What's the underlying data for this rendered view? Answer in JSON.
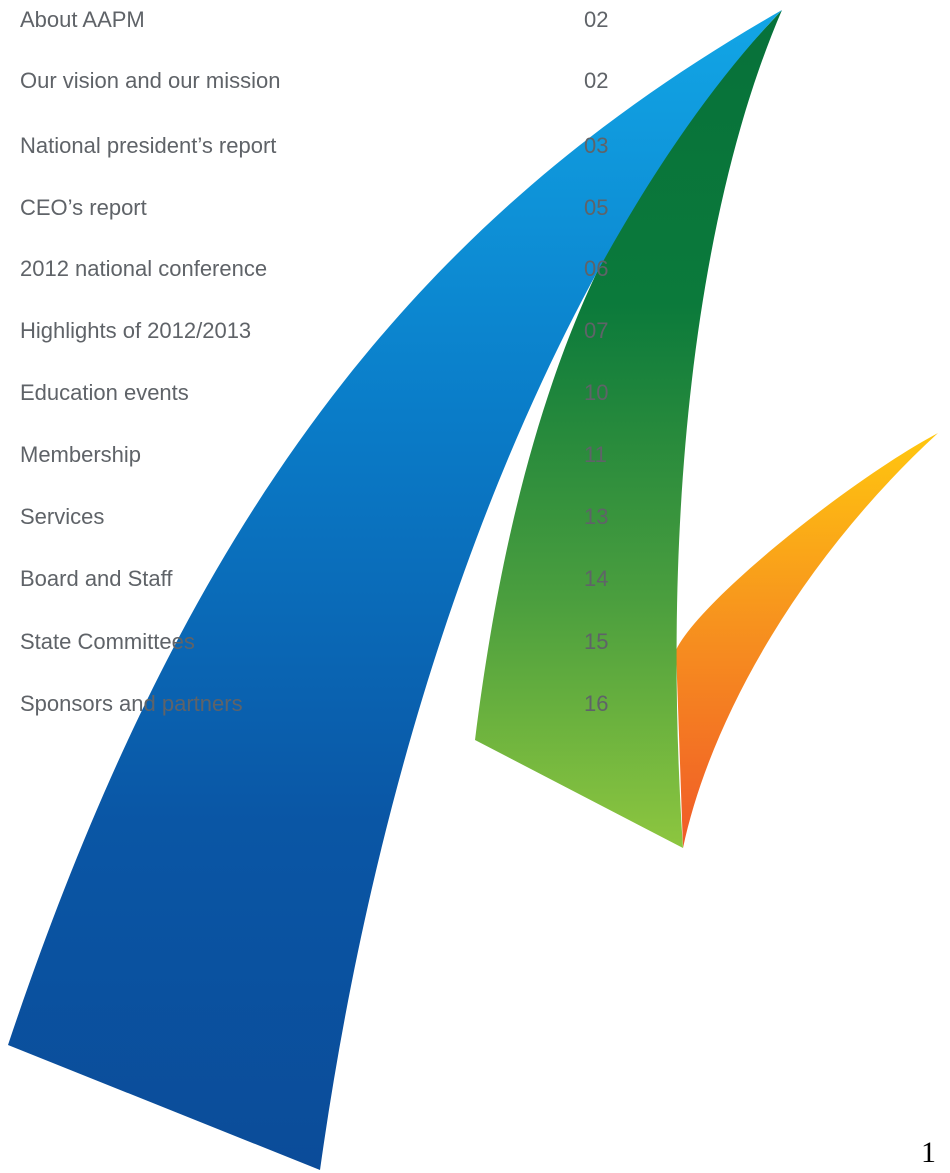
{
  "toc": {
    "entries": [
      {
        "title": "About AAPM",
        "page": "02"
      },
      {
        "title": "Our vision and our mission",
        "page": "02"
      },
      {
        "title": "National president’s report",
        "page": "03"
      },
      {
        "title": "CEO’s report",
        "page": "05"
      },
      {
        "title": "2012 national conference",
        "page": "06"
      },
      {
        "title": "Highlights of 2012/2013",
        "page": "07"
      },
      {
        "title": "Education events",
        "page": "10"
      },
      {
        "title": "Membership",
        "page": "11"
      },
      {
        "title": "Services",
        "page": "13"
      },
      {
        "title": "Board and Staff",
        "page": "14"
      },
      {
        "title": "State Committees",
        "page": "15"
      },
      {
        "title": "Sponsors and partners",
        "page": "16"
      }
    ]
  },
  "page_number": "1",
  "colors": {
    "text": "#5f6368",
    "blue_top": "#0aa0e0",
    "blue_bottom": "#0a4f9e",
    "green_top": "#0a6b35",
    "green_bottom": "#8cc63f",
    "orange_top": "#ffc20e",
    "orange_bottom": "#f05a28"
  }
}
